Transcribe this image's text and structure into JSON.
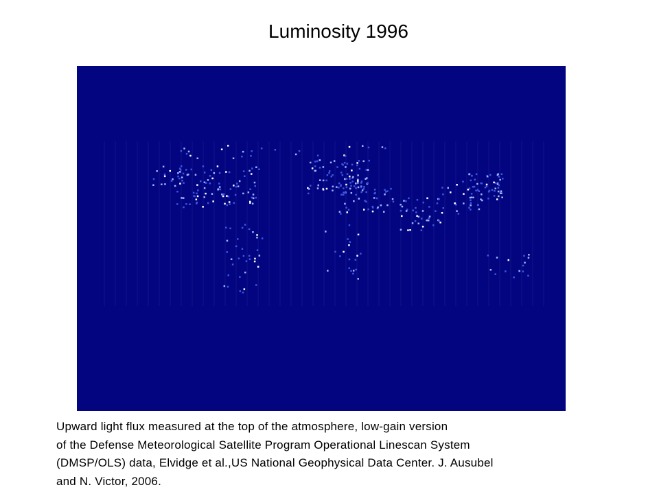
{
  "header": {
    "title": "Luminosity 1996"
  },
  "caption": {
    "lines": [
      "Upward light flux measured at the top of the atmosphere, low-gain version",
      "of the Defense Meteorological Satellite Program Operational Linescan System",
      "(DMSP/OLS) data, Elvidge et al.,US National Geophysical Data Center. J. Ausubel",
      "and N. Victor, 2006."
    ]
  }
}
